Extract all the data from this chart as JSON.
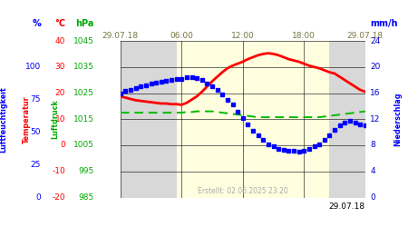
{
  "title_date": "29.07.18",
  "created": "Erstellt: 02.06.2025 23:20",
  "x_start": 0,
  "x_end": 24,
  "x_ticks": [
    0,
    6,
    12,
    18,
    24
  ],
  "x_tick_labels": [
    "29.07.18",
    "06:00",
    "12:00",
    "18:00",
    "29.07.18"
  ],
  "y_ticks": [
    0,
    4,
    8,
    12,
    16,
    20,
    24
  ],
  "daytime_band": [
    5.5,
    20.5
  ],
  "bg_day": "#ffffe0",
  "bg_night": "#d8d8d8",
  "blue_line_x": [
    0,
    0.5,
    1,
    1.5,
    2,
    2.5,
    3,
    3.5,
    4,
    4.5,
    5,
    5.5,
    6,
    6.5,
    7,
    7.5,
    8,
    8.5,
    9,
    9.5,
    10,
    10.5,
    11,
    11.5,
    12,
    12.5,
    13,
    13.5,
    14,
    14.5,
    15,
    15.5,
    16,
    16.5,
    17,
    17.5,
    18,
    18.5,
    19,
    19.5,
    20,
    20.5,
    21,
    21.5,
    22,
    22.5,
    23,
    23.5,
    24
  ],
  "blue_line_y": [
    16,
    16.3,
    16.5,
    16.8,
    17,
    17.2,
    17.4,
    17.6,
    17.8,
    17.9,
    18,
    18.1,
    18.2,
    18.4,
    18.5,
    18.3,
    18.0,
    17.5,
    17.0,
    16.5,
    15.8,
    15.0,
    14.2,
    13.2,
    12.2,
    11.2,
    10.2,
    9.5,
    8.8,
    8.2,
    7.8,
    7.5,
    7.3,
    7.2,
    7.1,
    7.0,
    7.2,
    7.5,
    7.8,
    8.2,
    8.8,
    9.5,
    10.3,
    11.0,
    11.5,
    11.8,
    11.5,
    11.2,
    11.0
  ],
  "red_line_x": [
    0,
    0.5,
    1,
    1.5,
    2,
    2.5,
    3,
    3.5,
    4,
    4.5,
    5,
    5.5,
    6,
    6.5,
    7,
    7.5,
    8,
    8.5,
    9,
    9.5,
    10,
    10.5,
    11,
    11.5,
    12,
    12.5,
    13,
    13.5,
    14,
    14.5,
    15,
    15.5,
    16,
    16.5,
    17,
    17.5,
    18,
    18.5,
    19,
    19.5,
    20,
    20.5,
    21,
    21.5,
    22,
    22.5,
    23,
    23.5,
    24
  ],
  "red_line_y": [
    15.5,
    15.3,
    15.1,
    14.9,
    14.8,
    14.7,
    14.6,
    14.5,
    14.4,
    14.4,
    14.3,
    14.3,
    14.2,
    14.5,
    15.0,
    15.5,
    16.2,
    17.0,
    17.8,
    18.5,
    19.2,
    19.8,
    20.2,
    20.5,
    20.8,
    21.2,
    21.5,
    21.8,
    22.0,
    22.1,
    22.0,
    21.8,
    21.5,
    21.2,
    21.0,
    20.8,
    20.5,
    20.2,
    20.0,
    19.8,
    19.5,
    19.2,
    19.0,
    18.5,
    18.0,
    17.5,
    17.0,
    16.5,
    16.2
  ],
  "green_line_x": [
    0,
    0.5,
    1,
    1.5,
    2,
    2.5,
    3,
    3.5,
    4,
    4.5,
    5,
    5.5,
    6,
    6.5,
    7,
    7.5,
    8,
    8.5,
    9,
    9.5,
    10,
    10.5,
    11,
    11.5,
    12,
    12.5,
    13,
    13.5,
    14,
    14.5,
    15,
    15.5,
    16,
    16.5,
    17,
    17.5,
    18,
    18.5,
    19,
    19.5,
    20,
    20.5,
    21,
    21.5,
    22,
    22.5,
    23,
    23.5,
    24
  ],
  "green_line_y": [
    13.0,
    13.0,
    13.0,
    13.0,
    13.0,
    13.0,
    13.0,
    13.0,
    13.0,
    13.0,
    13.0,
    13.0,
    13.0,
    13.1,
    13.1,
    13.2,
    13.2,
    13.2,
    13.2,
    13.1,
    13.0,
    12.9,
    12.8,
    12.7,
    12.6,
    12.5,
    12.4,
    12.3,
    12.3,
    12.3,
    12.3,
    12.3,
    12.3,
    12.3,
    12.3,
    12.3,
    12.3,
    12.3,
    12.3,
    12.3,
    12.4,
    12.5,
    12.6,
    12.7,
    12.8,
    12.9,
    13.0,
    13.1,
    13.2
  ],
  "pct_vals": [
    100,
    75,
    50,
    25,
    0
  ],
  "pct_y": [
    20,
    15,
    10,
    5,
    0
  ],
  "temp_vals": [
    40,
    30,
    20,
    10,
    0,
    -10,
    -20
  ],
  "hpa_vals": [
    1045,
    1035,
    1025,
    1015,
    1005,
    995,
    985
  ],
  "mmh_vals": [
    24,
    20,
    16,
    12,
    8,
    4,
    0
  ]
}
